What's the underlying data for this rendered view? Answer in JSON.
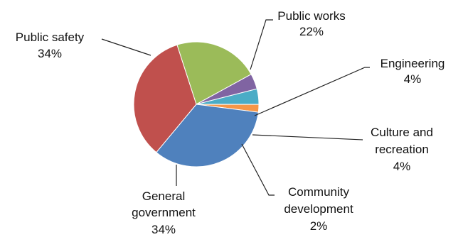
{
  "chart_data": {
    "type": "pie",
    "title": "",
    "slices": [
      {
        "category": "Public works",
        "value": 22,
        "label": "22%",
        "color": "#9BBB59"
      },
      {
        "category": "Engineering",
        "value": 4,
        "label": "4%",
        "color": "#8064A2"
      },
      {
        "category": "Culture and recreation",
        "value": 4,
        "label": "4%",
        "color": "#4BACC6"
      },
      {
        "category": "Community development",
        "value": 2,
        "label": "2%",
        "color": "#F79646"
      },
      {
        "category": "General government",
        "value": 34,
        "label": "34%",
        "color": "#4F81BD"
      },
      {
        "category": "Public safety",
        "value": 34,
        "label": "34%",
        "color": "#C0504D"
      }
    ],
    "legend": "none",
    "label_lines": {
      "public_works": [
        "Public works",
        "22%"
      ],
      "engineering": [
        "Engineering",
        "4%"
      ],
      "culture": [
        "Culture and",
        "recreation",
        "4%"
      ],
      "community": [
        "Community",
        "development",
        "2%"
      ],
      "general": [
        "General",
        "government",
        "34%"
      ],
      "safety": [
        "Public safety",
        "34%"
      ]
    }
  }
}
